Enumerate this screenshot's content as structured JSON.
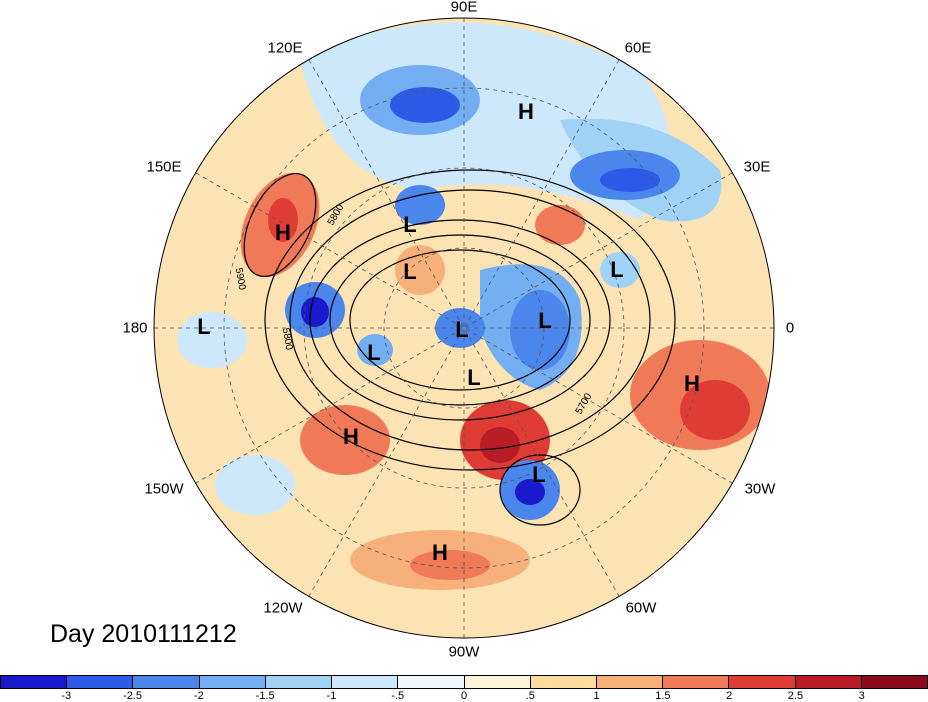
{
  "title": "Day 2010111212",
  "longitude_labels": [
    "90E",
    "60E",
    "30E",
    "0",
    "30W",
    "60W",
    "90W",
    "120W",
    "150W",
    "180",
    "150E",
    "120E"
  ],
  "pressure_centers": [
    {
      "type": "H",
      "label": "H"
    },
    {
      "type": "H",
      "label": "H"
    },
    {
      "type": "L",
      "label": "L"
    },
    {
      "type": "L",
      "label": "L"
    },
    {
      "type": "L",
      "label": "L"
    },
    {
      "type": "L",
      "label": "L"
    },
    {
      "type": "L",
      "label": "L"
    },
    {
      "type": "L",
      "label": "L"
    },
    {
      "type": "L",
      "label": "L"
    },
    {
      "type": "L",
      "label": "L"
    },
    {
      "type": "H",
      "label": "H"
    },
    {
      "type": "H",
      "label": "H"
    },
    {
      "type": "L",
      "label": "L"
    },
    {
      "type": "H",
      "label": "H"
    }
  ],
  "contour_labels": [
    "5800",
    "5900",
    "5800",
    "5700"
  ],
  "colorbar": {
    "ticks": [
      "-3",
      "-2.5",
      "-2",
      "-1.5",
      "-1",
      "-.5",
      "0",
      ".5",
      "1",
      "1.5",
      "2",
      "2.5",
      "3"
    ],
    "colors": [
      "#1a1acc",
      "#2d5ae6",
      "#4a86ec",
      "#73aef2",
      "#a0d2f6",
      "#cde8fa",
      "#eef7fd",
      "#fdf5d8",
      "#fbdc9c",
      "#f7b07a",
      "#f07a58",
      "#e03c36",
      "#b81c26",
      "#8c0a1e"
    ]
  }
}
